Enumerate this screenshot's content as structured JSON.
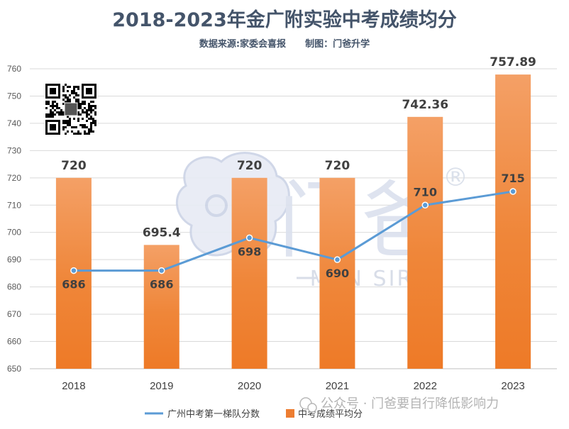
{
  "chart_data": {
    "type": "bar",
    "title": "2018-2023年金广附实验中考成绩均分",
    "subtitle": "数据来源:家委会喜报      制图：门爸升学",
    "categories": [
      "2018",
      "2019",
      "2020",
      "2021",
      "2022",
      "2023"
    ],
    "ylim": [
      650,
      760
    ],
    "yticks": [
      650,
      660,
      670,
      680,
      690,
      700,
      710,
      720,
      730,
      740,
      750,
      760
    ],
    "grid": true,
    "legend_position": "bottom",
    "series": [
      {
        "name": "广州中考第一梯队分数",
        "type": "line",
        "color": "#5b9bd5",
        "values": [
          686,
          686,
          698,
          690,
          710,
          715
        ],
        "labels": [
          "686",
          "686",
          "698",
          "690",
          "710",
          "715"
        ]
      },
      {
        "name": "中考成绩平均分",
        "type": "bar",
        "color": "#ed7d31",
        "values": [
          720,
          695.4,
          720,
          720,
          742.36,
          757.89
        ],
        "labels": [
          "720",
          "695.4",
          "720",
          "720",
          "742.36",
          "757.89"
        ]
      }
    ]
  },
  "watermark": {
    "brand": "门爸",
    "sub": "MEN SIR",
    "registered": "®",
    "footer": "公众号 · 门爸要自行降低影响力"
  }
}
